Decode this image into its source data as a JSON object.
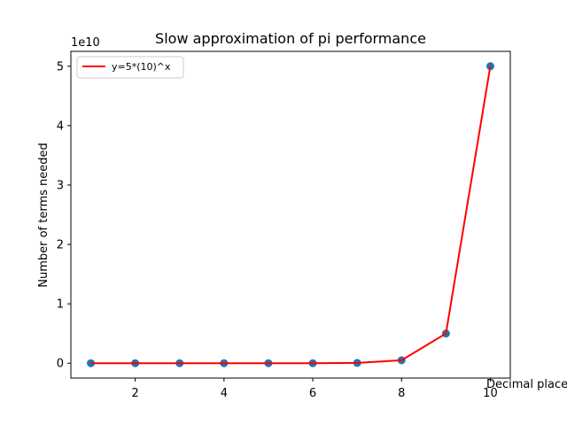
{
  "chart_data": {
    "type": "scatter",
    "title": "Slow approximation of pi performance",
    "xlabel": "Decimal places",
    "ylabel": "Number of terms needed",
    "y_offset_label": "1e10",
    "xlim": [
      0.55,
      10.45
    ],
    "ylim": [
      -2.5,
      52.5
    ],
    "x_ticks": [
      2,
      4,
      6,
      8,
      10
    ],
    "x_tick_labels": [
      "2",
      "4",
      "6",
      "8",
      "10"
    ],
    "y_ticks": [
      0,
      10,
      20,
      30,
      40,
      50
    ],
    "y_tick_labels": [
      "0",
      "1",
      "2",
      "3",
      "4",
      "5"
    ],
    "y_unit_multiplier": 1000000000,
    "grid": false,
    "legend_position": "top-left",
    "series": [
      {
        "kind": "scatter",
        "color": "#1f77b4",
        "x": [
          1,
          2,
          3,
          4,
          5,
          6,
          7,
          8,
          9,
          10
        ],
        "values": [
          5e-08,
          5e-07,
          5e-06,
          5e-05,
          0.0005,
          0.005,
          0.05,
          0.5,
          5,
          50
        ]
      },
      {
        "kind": "line",
        "name": "y=5*(10)^x",
        "color": "#ff0000",
        "x": [
          1,
          2,
          3,
          4,
          5,
          6,
          7,
          8,
          9,
          10
        ],
        "values": [
          5e-08,
          5e-07,
          5e-06,
          5e-05,
          0.0005,
          0.005,
          0.05,
          0.5,
          5,
          50
        ]
      }
    ]
  }
}
